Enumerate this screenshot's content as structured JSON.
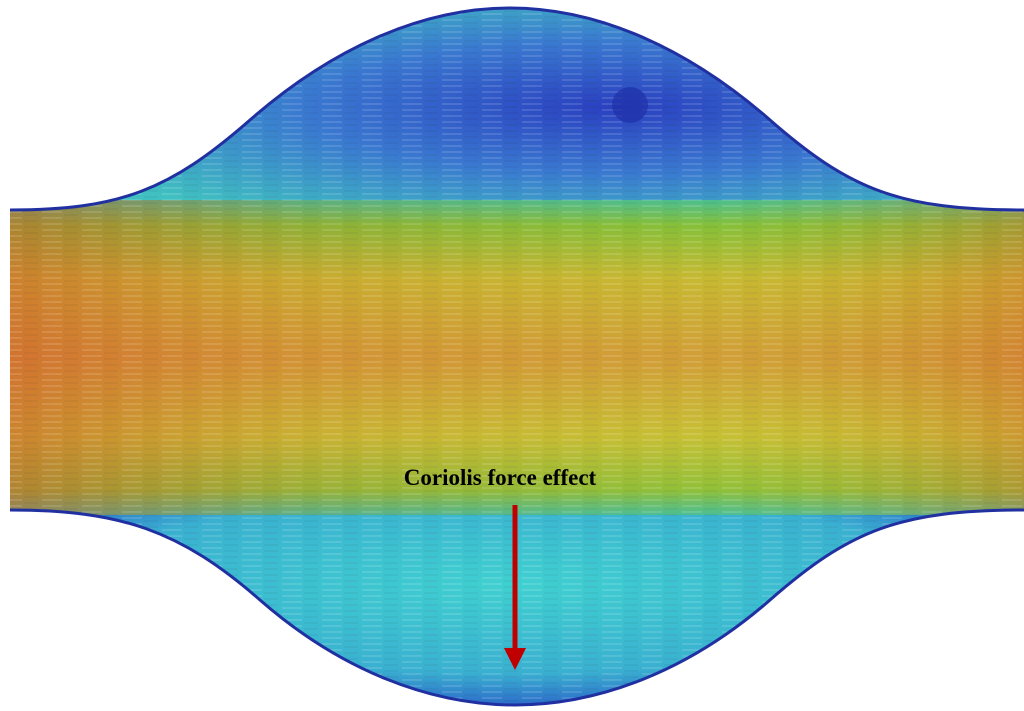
{
  "annotation": {
    "label": "Coriolis force effect"
  }
}
